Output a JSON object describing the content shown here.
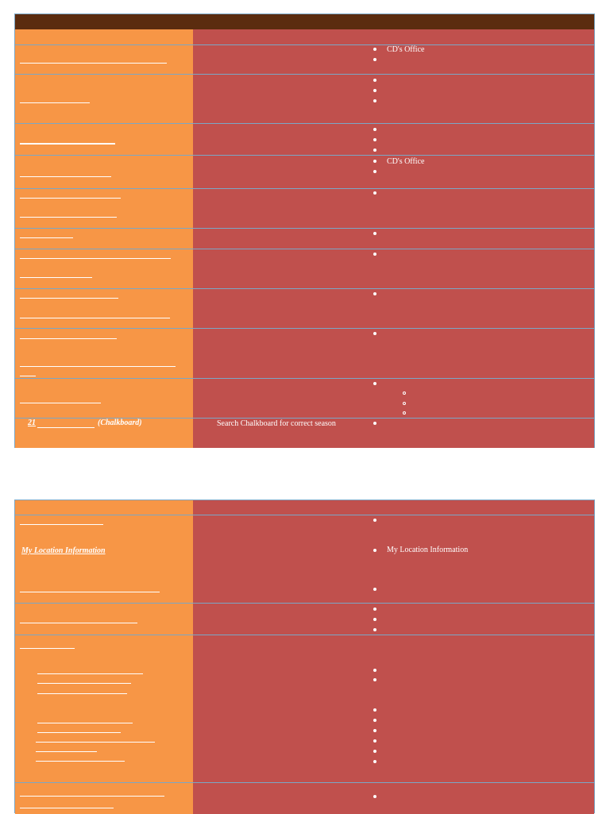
{
  "table1": {
    "rows": [
      {
        "right_text": ""
      },
      {
        "right_text": "CD's Office"
      },
      {
        "right_text": ""
      },
      {
        "right_text": ""
      },
      {
        "right_text": "CD's Office"
      },
      {
        "right_text": ""
      },
      {
        "right_text": ""
      },
      {
        "right_text": ""
      },
      {
        "right_text": ""
      },
      {
        "right_text": ""
      },
      {
        "right_text": ""
      },
      {
        "left_number": "21",
        "left_label": "(Chalkboard)",
        "middle_text": "Search Chalkboard for correct season"
      }
    ]
  },
  "table2": {
    "rows": [
      {
        "left_link": "My Location Information",
        "right_text": "My Location Information"
      }
    ]
  },
  "colors": {
    "header": "#5b2c0f",
    "left_column": "#f79646",
    "right_column": "#c0504d",
    "grid": "#7aa7c7"
  }
}
